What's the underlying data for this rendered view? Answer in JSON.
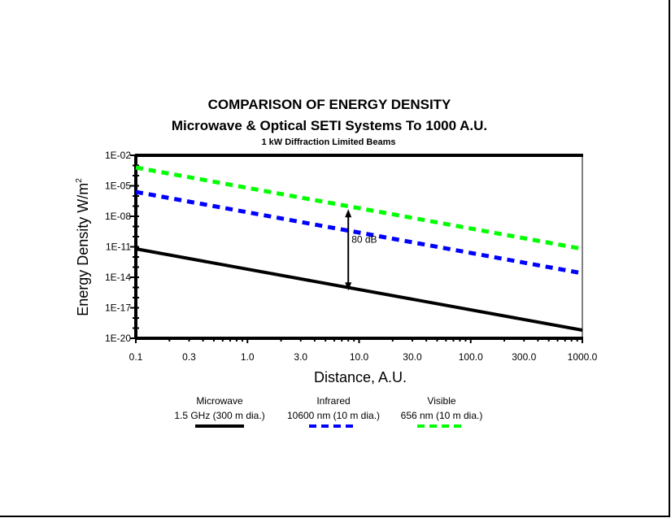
{
  "chart_data": {
    "type": "line",
    "title": "COMPARISON OF ENERGY DENSITY",
    "subtitle": "Microwave & Optical SETI Systems To 1000 A.U.",
    "subtitle2": "1 kW Diffraction Limited Beams",
    "xlabel": "Distance, A.U.",
    "ylabel": "Energy Density W/m",
    "ylabel_sup": "2",
    "x_scale": "log",
    "y_scale": "log",
    "xlim": [
      0.1,
      1000
    ],
    "ylim": [
      1e-20,
      0.01
    ],
    "x_ticks": [
      "0.1",
      "0.3",
      "1.0",
      "3.0",
      "10.0",
      "30.0",
      "100.0",
      "300.0",
      "1000.0"
    ],
    "x_tick_values": [
      0.1,
      0.3,
      1,
      3,
      10,
      30,
      100,
      300,
      1000
    ],
    "y_ticks": [
      "1E-02",
      "1E-05",
      "1E-08",
      "1E-11",
      "1E-14",
      "1E-17",
      "1E-20"
    ],
    "y_tick_values": [
      0.01,
      1e-05,
      1e-08,
      1e-11,
      1e-14,
      1e-17,
      1e-20
    ],
    "grid": false,
    "legend_position": "bottom",
    "series": [
      {
        "name": "Microwave",
        "detail": "1.5 GHz (300 m dia.)",
        "color": "#000000",
        "style": "solid",
        "x": [
          0.1,
          1000
        ],
        "y": [
          6.3e-12,
          6.3e-20
        ]
      },
      {
        "name": "Infrared",
        "detail": "10600 nm (10 m dia.)",
        "color": "#0000ff",
        "style": "dashed",
        "x": [
          0.1,
          1000
        ],
        "y": [
          2.5e-06,
          2.5e-14
        ]
      },
      {
        "name": "Visible",
        "detail": "656 nm (10 m dia.)",
        "color": "#00ff00",
        "style": "dashed",
        "x": [
          0.1,
          1000
        ],
        "y": [
          0.00063,
          6.3e-12
        ]
      }
    ],
    "annotations": [
      {
        "text": "80 dB",
        "x": 8,
        "y_from": 5e-08,
        "y_to": 5e-16
      }
    ]
  }
}
